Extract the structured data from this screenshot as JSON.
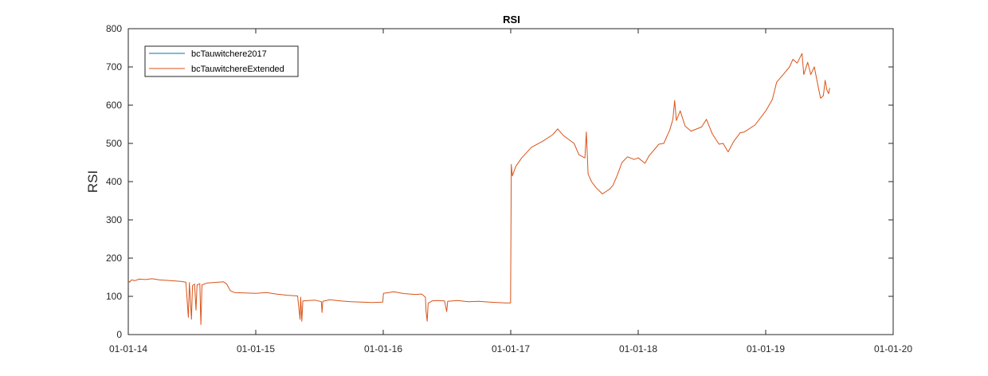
{
  "chart_data": {
    "type": "line",
    "title": "RSI",
    "xlabel": "",
    "ylabel": "RSI",
    "xlim": [
      "2014-01-01",
      "2020-01-01"
    ],
    "ylim": [
      0,
      800
    ],
    "x_ticks": [
      "01-01-14",
      "01-01-15",
      "01-01-16",
      "01-01-17",
      "01-01-18",
      "01-01-19",
      "01-01-20"
    ],
    "y_ticks": [
      "0",
      "100",
      "200",
      "300",
      "400",
      "500",
      "600",
      "700",
      "800"
    ],
    "grid": false,
    "legend_position": "top-left",
    "series": [
      {
        "name": "bcTauwitchere2017",
        "color": "#0072BD",
        "points": []
      },
      {
        "name": "bcTauwitchereExtended",
        "color": "#D95319",
        "points": [
          [
            "2014-01-01",
            140
          ],
          [
            "2014-01-05",
            137
          ],
          [
            "2014-01-10",
            143
          ],
          [
            "2014-01-20",
            141
          ],
          [
            "2014-02-01",
            145
          ],
          [
            "2014-02-20",
            144
          ],
          [
            "2014-03-10",
            146
          ],
          [
            "2014-04-01",
            143
          ],
          [
            "2014-05-01",
            141
          ],
          [
            "2014-06-01",
            139
          ],
          [
            "2014-06-15",
            137
          ],
          [
            "2014-06-22",
            45
          ],
          [
            "2014-06-25",
            136
          ],
          [
            "2014-07-01",
            40
          ],
          [
            "2014-07-04",
            128
          ],
          [
            "2014-07-10",
            132
          ],
          [
            "2014-07-14",
            64
          ],
          [
            "2014-07-17",
            130
          ],
          [
            "2014-07-25",
            133
          ],
          [
            "2014-07-28",
            26
          ],
          [
            "2014-07-31",
            130
          ],
          [
            "2014-08-15",
            135
          ],
          [
            "2014-09-01",
            136
          ],
          [
            "2014-10-01",
            138
          ],
          [
            "2014-10-10",
            132
          ],
          [
            "2014-10-20",
            115
          ],
          [
            "2014-11-01",
            110
          ],
          [
            "2014-12-01",
            109
          ],
          [
            "2015-01-01",
            108
          ],
          [
            "2015-02-01",
            110
          ],
          [
            "2015-03-01",
            106
          ],
          [
            "2015-04-01",
            103
          ],
          [
            "2015-05-01",
            101
          ],
          [
            "2015-05-08",
            40
          ],
          [
            "2015-05-10",
            98
          ],
          [
            "2015-05-13",
            35
          ],
          [
            "2015-05-16",
            88
          ],
          [
            "2015-06-01",
            89
          ],
          [
            "2015-06-20",
            90
          ],
          [
            "2015-07-08",
            86
          ],
          [
            "2015-07-10",
            58
          ],
          [
            "2015-07-12",
            87
          ],
          [
            "2015-08-01",
            91
          ],
          [
            "2015-09-01",
            88
          ],
          [
            "2015-10-01",
            86
          ],
          [
            "2015-11-01",
            85
          ],
          [
            "2015-12-01",
            84
          ],
          [
            "2015-12-31",
            85
          ],
          [
            "2016-01-02",
            108
          ],
          [
            "2016-02-01",
            112
          ],
          [
            "2016-03-01",
            107
          ],
          [
            "2016-04-01",
            105
          ],
          [
            "2016-04-20",
            106
          ],
          [
            "2016-05-01",
            98
          ],
          [
            "2016-05-03",
            62
          ],
          [
            "2016-05-06",
            35
          ],
          [
            "2016-05-09",
            82
          ],
          [
            "2016-05-20",
            88
          ],
          [
            "2016-06-01",
            89
          ],
          [
            "2016-06-25",
            88
          ],
          [
            "2016-07-01",
            60
          ],
          [
            "2016-07-04",
            87
          ],
          [
            "2016-08-01",
            89
          ],
          [
            "2016-09-01",
            86
          ],
          [
            "2016-10-01",
            87
          ],
          [
            "2016-11-01",
            85
          ],
          [
            "2016-12-15",
            83
          ],
          [
            "2016-12-31",
            83
          ],
          [
            "2017-01-02",
            445
          ],
          [
            "2017-01-05",
            415
          ],
          [
            "2017-01-15",
            440
          ],
          [
            "2017-02-01",
            462
          ],
          [
            "2017-03-01",
            490
          ],
          [
            "2017-04-01",
            505
          ],
          [
            "2017-05-01",
            523
          ],
          [
            "2017-05-15",
            538
          ],
          [
            "2017-06-01",
            520
          ],
          [
            "2017-07-01",
            500
          ],
          [
            "2017-07-15",
            470
          ],
          [
            "2017-08-01",
            462
          ],
          [
            "2017-08-05",
            530
          ],
          [
            "2017-08-10",
            420
          ],
          [
            "2017-08-20",
            400
          ],
          [
            "2017-09-01",
            385
          ],
          [
            "2017-09-20",
            368
          ],
          [
            "2017-10-10",
            380
          ],
          [
            "2017-10-20",
            390
          ],
          [
            "2017-11-01",
            415
          ],
          [
            "2017-11-15",
            450
          ],
          [
            "2017-12-01",
            465
          ],
          [
            "2017-12-20",
            458
          ],
          [
            "2018-01-01",
            462
          ],
          [
            "2018-01-20",
            448
          ],
          [
            "2018-02-01",
            468
          ],
          [
            "2018-03-01",
            498
          ],
          [
            "2018-03-15",
            500
          ],
          [
            "2018-04-01",
            535
          ],
          [
            "2018-04-10",
            563
          ],
          [
            "2018-04-15",
            612
          ],
          [
            "2018-04-20",
            560
          ],
          [
            "2018-05-01",
            585
          ],
          [
            "2018-05-15",
            545
          ],
          [
            "2018-06-01",
            532
          ],
          [
            "2018-07-01",
            543
          ],
          [
            "2018-07-15",
            563
          ],
          [
            "2018-08-01",
            525
          ],
          [
            "2018-08-20",
            498
          ],
          [
            "2018-09-01",
            500
          ],
          [
            "2018-09-15",
            478
          ],
          [
            "2018-10-01",
            505
          ],
          [
            "2018-10-20",
            528
          ],
          [
            "2018-11-01",
            530
          ],
          [
            "2018-12-01",
            548
          ],
          [
            "2019-01-01",
            585
          ],
          [
            "2019-01-20",
            615
          ],
          [
            "2019-02-01",
            660
          ],
          [
            "2019-02-20",
            680
          ],
          [
            "2019-03-10",
            700
          ],
          [
            "2019-03-20",
            720
          ],
          [
            "2019-04-01",
            710
          ],
          [
            "2019-04-15",
            735
          ],
          [
            "2019-04-20",
            680
          ],
          [
            "2019-05-01",
            712
          ],
          [
            "2019-05-10",
            680
          ],
          [
            "2019-05-20",
            700
          ],
          [
            "2019-06-01",
            645
          ],
          [
            "2019-06-07",
            618
          ],
          [
            "2019-06-15",
            625
          ],
          [
            "2019-06-20",
            665
          ],
          [
            "2019-06-25",
            640
          ],
          [
            "2019-06-30",
            630
          ],
          [
            "2019-07-03",
            645
          ]
        ]
      }
    ]
  }
}
